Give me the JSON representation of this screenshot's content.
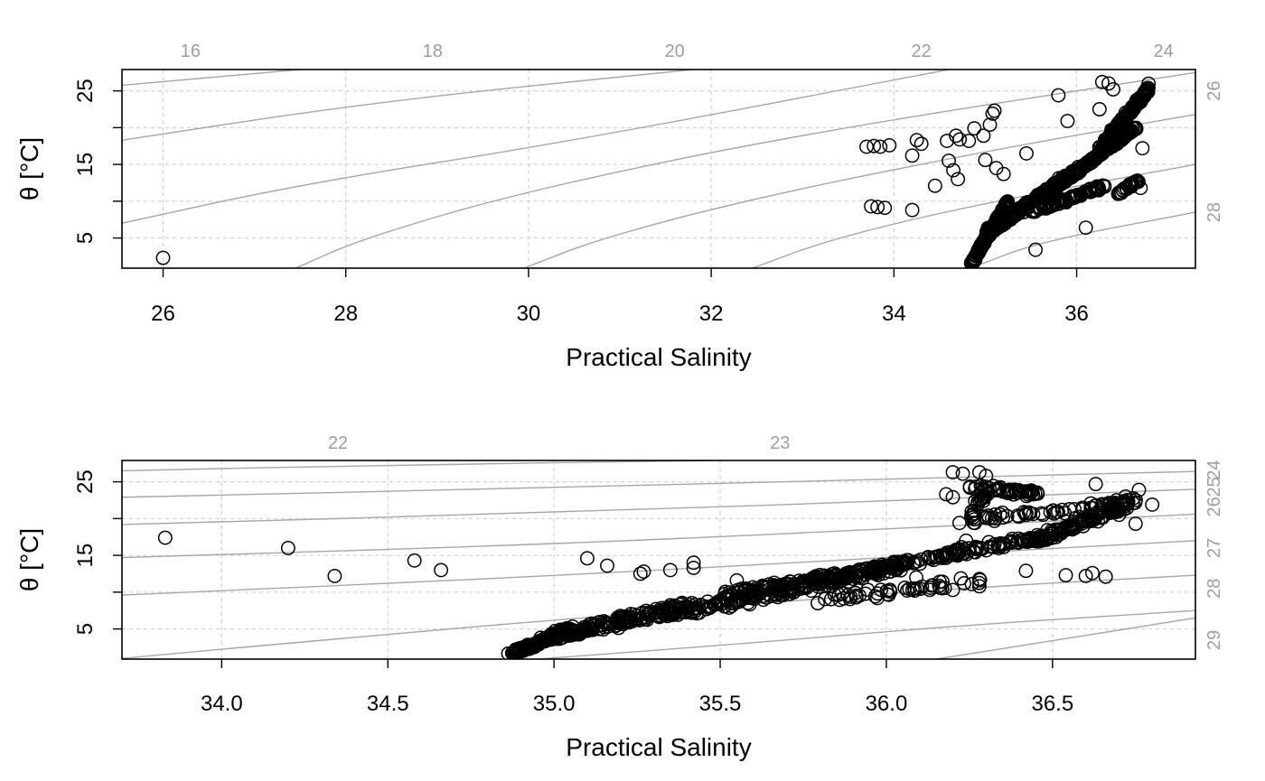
{
  "chart_data": [
    {
      "type": "scatter",
      "xlabel": "Practical Salinity",
      "ylabel": "θ [°C]",
      "xlim": [
        25.55,
        37.3
      ],
      "ylim": [
        0.9,
        27.9
      ],
      "x_ticks": [
        "26",
        "28",
        "30",
        "32",
        "34",
        "36"
      ],
      "y_ticks": [
        "5",
        "15",
        "25"
      ],
      "grid": true,
      "isopycnal_color": "#a6a6a6",
      "isopycnals_top": [
        "16",
        "18",
        "20",
        "22",
        "24"
      ],
      "isopycnals_right": [
        "26",
        "28"
      ],
      "points": [
        [
          26.0,
          2.3
        ],
        [
          33.7,
          17.4
        ],
        [
          33.78,
          17.5
        ],
        [
          33.85,
          17.4
        ],
        [
          33.95,
          17.6
        ],
        [
          33.75,
          9.3
        ],
        [
          33.82,
          9.2
        ],
        [
          33.9,
          9.1
        ],
        [
          34.2,
          8.8
        ],
        [
          34.2,
          16.2
        ],
        [
          34.25,
          18.3
        ],
        [
          34.3,
          17.8
        ],
        [
          34.45,
          12.1
        ],
        [
          34.58,
          18.2
        ],
        [
          34.6,
          15.5
        ],
        [
          34.65,
          14.2
        ],
        [
          34.7,
          13.0
        ],
        [
          34.68,
          18.9
        ],
        [
          34.72,
          18.4
        ],
        [
          34.82,
          18.2
        ],
        [
          34.88,
          19.9
        ],
        [
          34.98,
          18.9
        ],
        [
          35.05,
          20.4
        ],
        [
          35.08,
          21.9
        ],
        [
          35.1,
          22.3
        ],
        [
          35.0,
          15.6
        ],
        [
          35.12,
          14.5
        ],
        [
          35.2,
          13.7
        ],
        [
          35.45,
          16.5
        ],
        [
          35.55,
          3.4
        ],
        [
          35.8,
          24.4
        ],
        [
          35.9,
          20.9
        ],
        [
          36.1,
          6.4
        ],
        [
          36.25,
          22.5
        ],
        [
          36.28,
          26.2
        ],
        [
          36.35,
          26.0
        ],
        [
          36.4,
          25.2
        ],
        [
          36.72,
          17.2
        ],
        [
          36.6,
          12.0
        ],
        [
          36.7,
          11.8
        ]
      ],
      "clusters": [
        {
          "x": [
            34.85,
            35.25
          ],
          "y": [
            1.5,
            10.0
          ],
          "n": 180,
          "spread": 0.12
        },
        {
          "x": [
            35.0,
            36.05
          ],
          "y": [
            5.5,
            14.5
          ],
          "n": 260,
          "spread": 0.3
        },
        {
          "x": [
            35.5,
            36.3
          ],
          "y": [
            8.5,
            12.0
          ],
          "n": 90,
          "spread": 0.2
        },
        {
          "x": [
            36.05,
            36.65
          ],
          "y": [
            14.5,
            20.0
          ],
          "n": 140,
          "spread": 0.15
        },
        {
          "x": [
            36.25,
            36.8
          ],
          "y": [
            17.0,
            25.5
          ],
          "n": 140,
          "spread": 0.3
        },
        {
          "x": [
            36.45,
            36.7
          ],
          "y": [
            11.0,
            13.0
          ],
          "n": 30,
          "spread": 0.15
        }
      ]
    },
    {
      "type": "scatter",
      "xlabel": "Practical Salinity",
      "ylabel": "θ [°C]",
      "xlim": [
        33.7,
        36.93
      ],
      "ylim": [
        0.9,
        27.9
      ],
      "x_ticks": [
        "34.0",
        "34.5",
        "35.0",
        "35.5",
        "36.0",
        "36.5"
      ],
      "y_ticks": [
        "5",
        "15",
        "25"
      ],
      "grid": true,
      "isopycnal_color": "#a6a6a6",
      "isopycnals_top": [
        "22",
        "23"
      ],
      "isopycnals_right": [
        "24",
        "25",
        "26",
        "27",
        "28",
        "29"
      ],
      "points": [
        [
          33.83,
          17.4
        ],
        [
          34.2,
          16.0
        ],
        [
          34.34,
          12.2
        ],
        [
          34.58,
          14.3
        ],
        [
          34.66,
          13.0
        ],
        [
          35.1,
          14.6
        ],
        [
          35.16,
          13.6
        ],
        [
          35.26,
          12.5
        ],
        [
          35.27,
          12.8
        ],
        [
          35.35,
          13.0
        ],
        [
          35.42,
          13.3
        ],
        [
          35.42,
          14.0
        ],
        [
          35.55,
          11.6
        ],
        [
          36.09,
          12.0
        ],
        [
          36.2,
          10.3
        ],
        [
          36.28,
          11.8
        ],
        [
          36.28,
          10.8
        ],
        [
          36.42,
          12.9
        ],
        [
          36.54,
          12.3
        ],
        [
          36.6,
          12.2
        ],
        [
          36.62,
          12.6
        ],
        [
          36.66,
          12.1
        ],
        [
          36.2,
          26.3
        ],
        [
          36.23,
          26.1
        ],
        [
          36.28,
          26.3
        ],
        [
          36.3,
          25.8
        ],
        [
          36.18,
          23.3
        ],
        [
          36.2,
          22.9
        ],
        [
          36.22,
          19.4
        ],
        [
          36.24,
          17.0
        ],
        [
          36.63,
          24.7
        ],
        [
          36.72,
          23.0
        ],
        [
          36.76,
          23.9
        ],
        [
          36.8,
          21.9
        ],
        [
          36.7,
          20.5
        ],
        [
          36.75,
          19.3
        ]
      ],
      "clusters": [
        {
          "x": [
            34.87,
            35.05
          ],
          "y": [
            1.5,
            5.0
          ],
          "n": 120,
          "spread": 0.18
        },
        {
          "x": [
            35.0,
            35.4
          ],
          "y": [
            4.0,
            8.0
          ],
          "n": 170,
          "spread": 0.5
        },
        {
          "x": [
            35.4,
            36.05
          ],
          "y": [
            7.5,
            13.5
          ],
          "n": 200,
          "spread": 0.5
        },
        {
          "x": [
            35.5,
            36.25
          ],
          "y": [
            9.5,
            15.5
          ],
          "n": 170,
          "spread": 0.3
        },
        {
          "x": [
            35.8,
            36.3
          ],
          "y": [
            9.0,
            11.5
          ],
          "n": 50,
          "spread": 0.4
        },
        {
          "x": [
            36.2,
            36.5
          ],
          "y": [
            15.5,
            17.5
          ],
          "n": 60,
          "spread": 0.3
        },
        {
          "x": [
            36.45,
            36.75
          ],
          "y": [
            17.0,
            22.5
          ],
          "n": 120,
          "spread": 0.4
        },
        {
          "x": [
            36.3,
            36.7
          ],
          "y": [
            20.0,
            22.0
          ],
          "n": 50,
          "spread": 0.3
        },
        {
          "x": [
            36.45,
            36.25
          ],
          "y": [
            23.5,
            24.3
          ],
          "n": 50,
          "spread": 0.3
        },
        {
          "x": [
            36.25,
            36.3
          ],
          "y": [
            19.5,
            24.0
          ],
          "n": 25,
          "spread": 0.4
        }
      ]
    }
  ]
}
